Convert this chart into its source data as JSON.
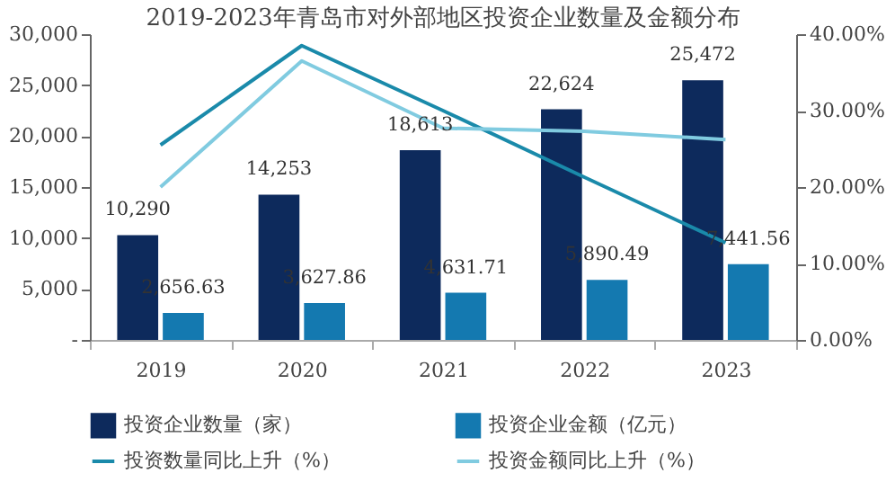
{
  "chart_data": {
    "type": "bar",
    "title": "2019-2023年青岛市对外部地区投资企业数量及金额分布",
    "categories": [
      "2019",
      "2020",
      "2021",
      "2022",
      "2023"
    ],
    "series": [
      {
        "name": "投资企业数量（家）",
        "type": "bar",
        "axis": "y",
        "color": "#0d2a5c",
        "values": [
          10290,
          14253,
          18613,
          22624,
          25472
        ],
        "value_labels": [
          "10,290",
          "14,253",
          "18,613",
          "22,624",
          "25,472"
        ]
      },
      {
        "name": "投资企业金额（亿元）",
        "type": "bar",
        "axis": "y",
        "color": "#1479b0",
        "values": [
          2656.63,
          3627.86,
          4631.71,
          5890.49,
          7441.56
        ],
        "value_labels": [
          "2,656.63",
          "3,627.86",
          "4,631.71",
          "5,890.49",
          "7,441.56"
        ]
      },
      {
        "name": "投资数量同比上升（%）",
        "type": "line",
        "axis": "y2",
        "color": "#1a8aaa",
        "values": [
          25.5,
          38.5,
          30.0,
          21.3,
          12.7
        ]
      },
      {
        "name": "投资金额同比上升（%）",
        "type": "line",
        "axis": "y2",
        "color": "#80cbe0",
        "values": [
          20.0,
          36.5,
          27.7,
          27.3,
          26.2
        ]
      }
    ],
    "ylim": [
      0,
      30000
    ],
    "yticks": [
      {
        "value": 0,
        "label": "-"
      },
      {
        "value": 5000,
        "label": "5,000"
      },
      {
        "value": 10000,
        "label": "10,000"
      },
      {
        "value": 15000,
        "label": "15,000"
      },
      {
        "value": 20000,
        "label": "20,000"
      },
      {
        "value": 25000,
        "label": "25,000"
      },
      {
        "value": 30000,
        "label": "30,000"
      }
    ],
    "y2lim": [
      0,
      40
    ],
    "y2ticks": [
      {
        "value": 0,
        "label": "0.00%"
      },
      {
        "value": 10,
        "label": "10.00%"
      },
      {
        "value": 20,
        "label": "20.00%"
      },
      {
        "value": 30,
        "label": "30.00%"
      },
      {
        "value": 40,
        "label": "40.00%"
      }
    ],
    "legend": "bottom"
  }
}
